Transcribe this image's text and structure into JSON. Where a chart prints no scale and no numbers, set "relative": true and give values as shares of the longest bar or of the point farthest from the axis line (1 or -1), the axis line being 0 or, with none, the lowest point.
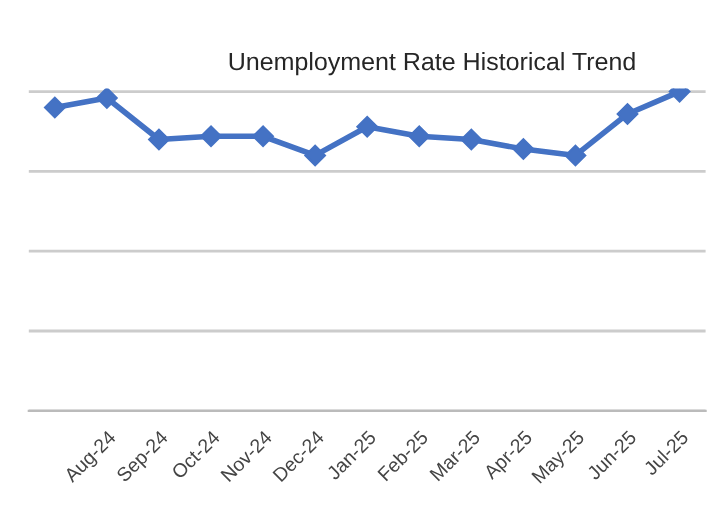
{
  "chart_data": {
    "type": "line",
    "title": "Unemployment Rate Historical Trend",
    "categories": [
      null,
      "Aug-24",
      "Sep-24",
      "Oct-24",
      "Nov-24",
      "Dec-24",
      "Jan-25",
      "Feb-25",
      "Mar-25",
      "Apr-25",
      "May-25",
      "Jun-25",
      "Jul-25"
    ],
    "series": [
      {
        "color": "#4472c4",
        "values": [
          0.95,
          0.98,
          0.85,
          0.86,
          0.86,
          0.8,
          0.89,
          0.86,
          0.85,
          0.82,
          0.8,
          0.93,
          1
        ]
      }
    ],
    "relative": true,
    "grid": "y",
    "marker": "diamond",
    "line_style": "solid",
    "legend": false
  }
}
